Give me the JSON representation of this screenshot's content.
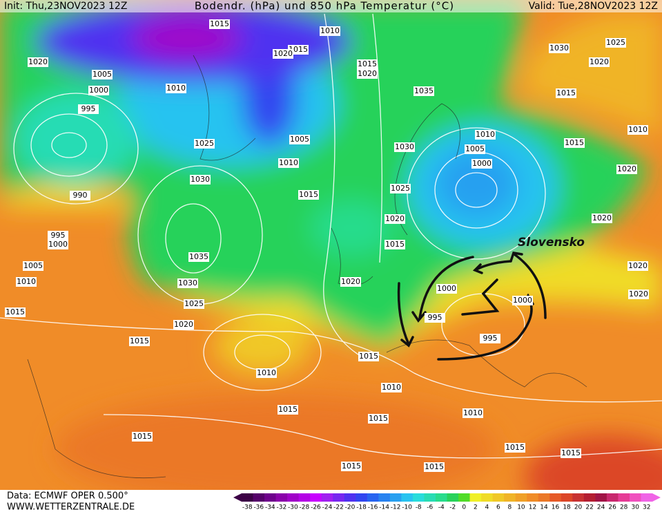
{
  "header": {
    "init": "Init: Thu,23NOV2023 12Z",
    "title": "Bodendr. (hPa) und 850 hPa Temperatur (°C)",
    "valid": "Valid: Tue,28NOV2023 12Z"
  },
  "map": {
    "annotation": "Slovensko",
    "isobars": [
      "1015",
      "1010",
      "1030",
      "1025",
      "1020",
      "1015",
      "1020",
      "1015",
      "1020",
      "1020",
      "1005",
      "1010",
      "1000",
      "1035",
      "1015",
      "995",
      "1025",
      "1005",
      "1010",
      "1010",
      "1005",
      "1000",
      "1030",
      "1015",
      "1010",
      "1020",
      "1030",
      "1015",
      "1025",
      "990",
      "1020",
      "1015",
      "1020",
      "995",
      "1000",
      "1035",
      "1005",
      "1010",
      "1030",
      "1020",
      "1000",
      "1000",
      "1020",
      "1020",
      "1025",
      "1015",
      "995",
      "1020",
      "995",
      "1015",
      "1015",
      "1010",
      "1010",
      "1015",
      "1015",
      "1010",
      "1015",
      "1015",
      "1015",
      "1015",
      "1015"
    ]
  },
  "scale": {
    "ticks": [
      -38,
      -36,
      -34,
      -32,
      -30,
      -28,
      -26,
      -24,
      -22,
      -20,
      -18,
      -16,
      -14,
      -12,
      -10,
      -8,
      -6,
      -4,
      -2,
      0,
      2,
      4,
      6,
      8,
      10,
      12,
      14,
      16,
      18,
      20,
      22,
      24,
      26,
      28,
      30,
      32
    ],
    "colors": [
      "#3c0046",
      "#55006a",
      "#6e008c",
      "#8a00aa",
      "#a000c8",
      "#b400e6",
      "#c800ff",
      "#a020f0",
      "#7828f0",
      "#5032f0",
      "#3246f0",
      "#2864f0",
      "#2882f0",
      "#28a0f0",
      "#28c3f0",
      "#28dcdc",
      "#28dcb4",
      "#28dc8c",
      "#28d25a",
      "#50dc28",
      "#f0f028",
      "#f0dc28",
      "#f0c828",
      "#f0b428",
      "#f0a028",
      "#f08c28",
      "#eb7828",
      "#e65a28",
      "#dc4628",
      "#c83232",
      "#b41e32",
      "#a01446",
      "#c8286e",
      "#e63c96",
      "#f050be",
      "#f064e6"
    ]
  },
  "footer": {
    "source": "Data: ECMWF OPER 0.500°",
    "site": "WWW.WETTERZENTRALE.DE"
  }
}
